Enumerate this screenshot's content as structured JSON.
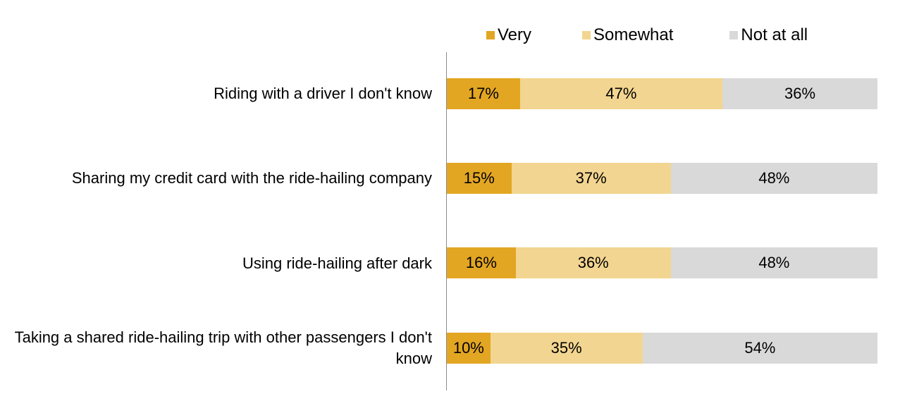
{
  "chart_data": {
    "type": "bar",
    "orientation": "horizontal",
    "stacked": true,
    "legend_placement": "top",
    "categories": [
      "Riding with a driver I don't know",
      "Sharing my credit card with the ride-hailing company",
      "Using ride-hailing after dark",
      "Taking a shared ride-hailing trip with other passengers I don't know"
    ],
    "series": [
      {
        "name": "Very",
        "color": "#E3A623",
        "values": [
          17,
          15,
          16,
          10
        ],
        "labels": [
          "17%",
          "15%",
          "16%",
          "10%"
        ]
      },
      {
        "name": "Somewhat",
        "color": "#F2D590",
        "values": [
          47,
          37,
          36,
          35
        ],
        "labels": [
          "47%",
          "37%",
          "36%",
          "35%"
        ]
      },
      {
        "name": "Not at all",
        "color": "#D9D9D9",
        "values": [
          36,
          48,
          48,
          54
        ],
        "labels": [
          "36%",
          "48%",
          "48%",
          "54%"
        ]
      }
    ],
    "xlim": [
      0,
      100
    ]
  }
}
